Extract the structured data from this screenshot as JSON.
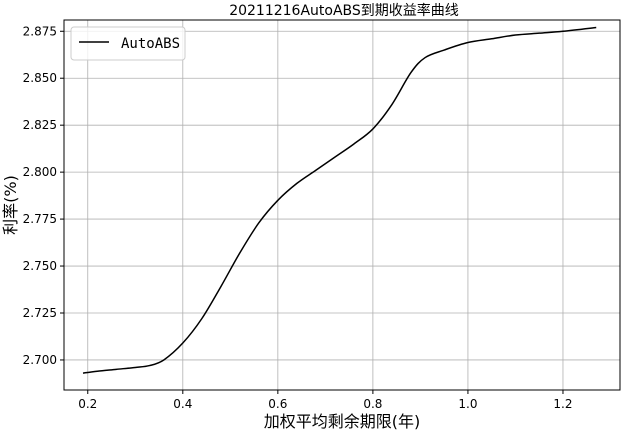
{
  "chart_data": {
    "type": "line",
    "title": "20211216AutoABS到期收益率曲线",
    "xlabel": "加权平均剩余期限(年)",
    "ylabel": "利率(%)",
    "xlim": [
      0.15,
      1.32
    ],
    "ylim": [
      2.684,
      2.881
    ],
    "xticks": [
      0.2,
      0.4,
      0.6,
      0.8,
      1.0,
      1.2
    ],
    "xtick_labels": [
      "0.2",
      "0.4",
      "0.6",
      "0.8",
      "1.0",
      "1.2"
    ],
    "yticks": [
      2.7,
      2.725,
      2.75,
      2.775,
      2.8,
      2.825,
      2.85,
      2.875
    ],
    "ytick_labels": [
      "2.700",
      "2.725",
      "2.750",
      "2.775",
      "2.800",
      "2.825",
      "2.850",
      "2.875"
    ],
    "grid": true,
    "legend": "top-left",
    "series": [
      {
        "name": "AutoABS",
        "color": "#000000",
        "x": [
          0.19,
          0.22,
          0.26,
          0.3,
          0.33,
          0.36,
          0.4,
          0.44,
          0.48,
          0.52,
          0.56,
          0.6,
          0.64,
          0.68,
          0.72,
          0.76,
          0.8,
          0.84,
          0.88,
          0.91,
          0.95,
          1.0,
          1.05,
          1.1,
          1.15,
          1.2,
          1.27
        ],
        "y": [
          2.693,
          2.694,
          2.695,
          2.696,
          2.697,
          2.7,
          2.709,
          2.722,
          2.739,
          2.757,
          2.773,
          2.785,
          2.794,
          2.801,
          2.808,
          2.815,
          2.823,
          2.836,
          2.853,
          2.861,
          2.865,
          2.869,
          2.871,
          2.873,
          2.874,
          2.875,
          2.877
        ]
      }
    ]
  }
}
